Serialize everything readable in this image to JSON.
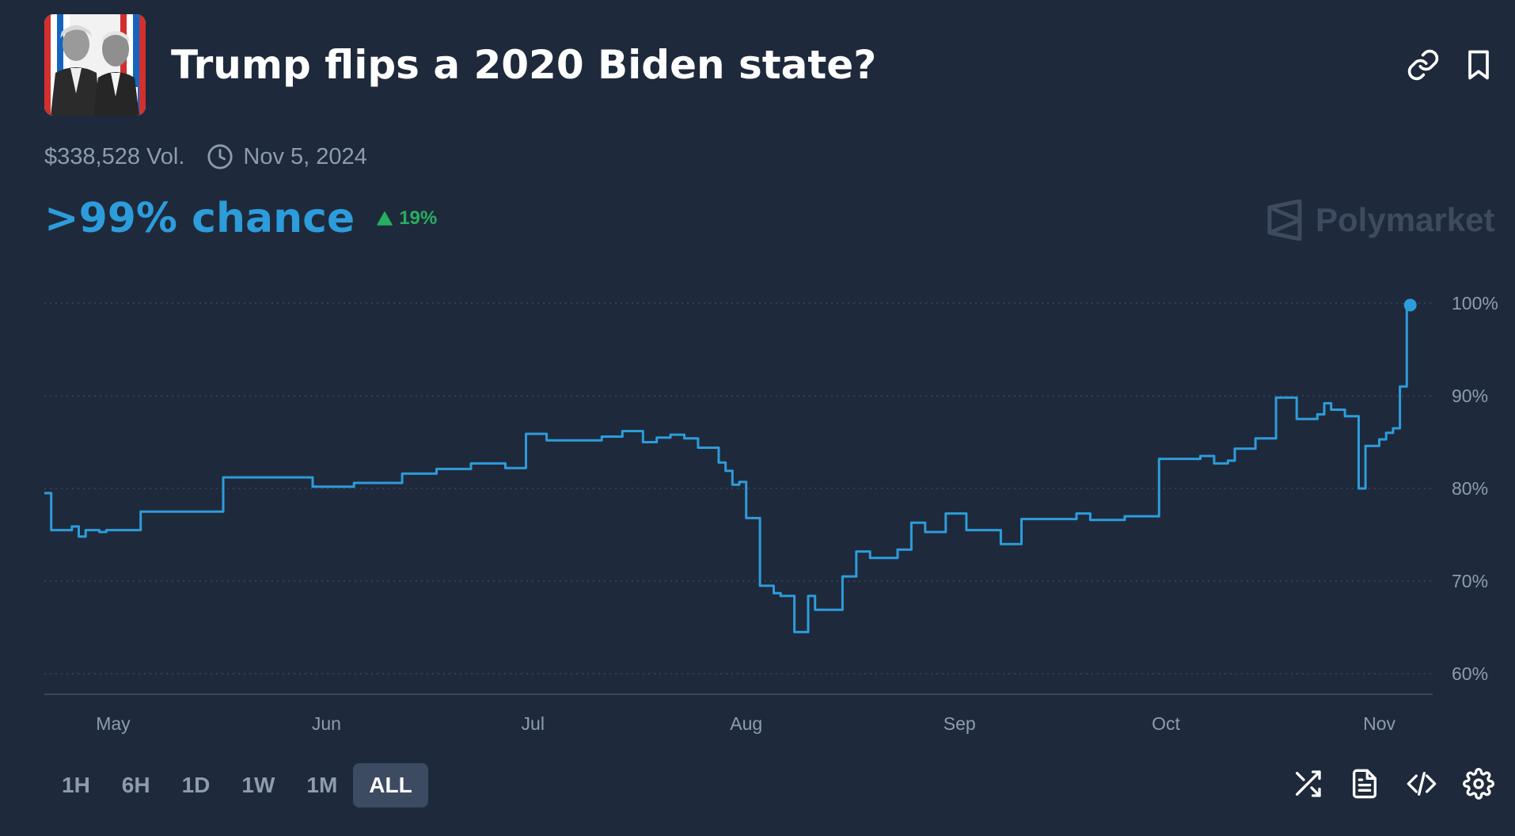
{
  "market": {
    "title": "Trump flips a 2020 Biden state?",
    "volume": "$338,528 Vol.",
    "date": "Nov 5, 2024",
    "chance": ">99% chance",
    "change": "19%",
    "change_direction": "up",
    "brand": "Polymarket",
    "thumbnail": "trump-biden-photo"
  },
  "icons": {
    "link": "link-icon",
    "bookmark": "bookmark-icon",
    "clock": "clock-icon",
    "shuffle": "shuffle-icon",
    "document": "document-icon",
    "embed": "code-icon",
    "settings": "gear-icon"
  },
  "colors": {
    "background": "#1e2a3b",
    "line": "#2d9cdb",
    "positive": "#27ae60",
    "muted": "#8e9bb0"
  },
  "time_ranges": [
    "1H",
    "6H",
    "1D",
    "1W",
    "1M",
    "ALL"
  ],
  "active_range": "ALL",
  "chart_data": {
    "type": "line",
    "title": "",
    "xlabel": "",
    "ylabel": "",
    "x_ticks": [
      "May",
      "Jun",
      "Jul",
      "Aug",
      "Sep",
      "Oct",
      "Nov"
    ],
    "y_ticks": [
      "100%",
      "90%",
      "80%",
      "70%",
      "60%"
    ],
    "ylim": [
      58,
      100
    ],
    "xlim": [
      "2024-04-21",
      "2024-11-06"
    ],
    "grid": true,
    "series": [
      {
        "name": "",
        "color": "#2d9cdb",
        "x": [
          "2024-04-21",
          "2024-04-22",
          "2024-04-25",
          "2024-04-26",
          "2024-04-27",
          "2024-04-29",
          "2024-04-30",
          "2024-05-05",
          "2024-05-10",
          "2024-05-12",
          "2024-05-17",
          "2024-05-20",
          "2024-05-23",
          "2024-05-30",
          "2024-06-02",
          "2024-06-05",
          "2024-06-12",
          "2024-06-17",
          "2024-06-22",
          "2024-06-27",
          "2024-06-29",
          "2024-06-30",
          "2024-07-03",
          "2024-07-08",
          "2024-07-11",
          "2024-07-14",
          "2024-07-17",
          "2024-07-19",
          "2024-07-21",
          "2024-07-23",
          "2024-07-25",
          "2024-07-27",
          "2024-07-28",
          "2024-07-29",
          "2024-07-30",
          "2024-07-31",
          "2024-08-01",
          "2024-08-03",
          "2024-08-05",
          "2024-08-06",
          "2024-08-08",
          "2024-08-10",
          "2024-08-11",
          "2024-08-12",
          "2024-08-15",
          "2024-08-17",
          "2024-08-19",
          "2024-08-21",
          "2024-08-23",
          "2024-08-25",
          "2024-08-27",
          "2024-08-30",
          "2024-09-02",
          "2024-09-05",
          "2024-09-07",
          "2024-09-10",
          "2024-09-18",
          "2024-09-19",
          "2024-09-20",
          "2024-09-25",
          "2024-09-30",
          "2024-10-06",
          "2024-10-08",
          "2024-10-10",
          "2024-10-11",
          "2024-10-14",
          "2024-10-17",
          "2024-10-20",
          "2024-10-23",
          "2024-10-24",
          "2024-10-25",
          "2024-10-27",
          "2024-10-29",
          "2024-10-30",
          "2024-11-01",
          "2024-11-02",
          "2024-11-03",
          "2024-11-04",
          "2024-11-05",
          "2024-11-05T12"
        ],
        "y": [
          79.5,
          75.5,
          75.9,
          74.8,
          75.5,
          75.3,
          75.5,
          77.5,
          77.5,
          77.5,
          81.2,
          81.2,
          81.2,
          80.2,
          80.2,
          80.6,
          81.6,
          82.1,
          82.7,
          82.2,
          82.2,
          85.9,
          85.2,
          85.2,
          85.6,
          86.2,
          85.0,
          85.5,
          85.8,
          85.4,
          84.4,
          84.4,
          82.8,
          81.9,
          80.4,
          80.7,
          76.8,
          69.5,
          68.7,
          68.4,
          64.5,
          68.4,
          66.9,
          66.9,
          70.5,
          73.2,
          72.5,
          72.5,
          73.4,
          76.3,
          75.3,
          77.3,
          75.5,
          75.5,
          74.0,
          76.7,
          77.3,
          77.3,
          76.6,
          77.0,
          83.2,
          83.5,
          82.7,
          83.0,
          84.3,
          85.4,
          89.8,
          87.5,
          88.0,
          89.2,
          88.5,
          87.8,
          80.0,
          84.6,
          85.3,
          86.0,
          86.5,
          91.0,
          99.8,
          99.8
        ]
      }
    ],
    "current_value": 99.8
  }
}
